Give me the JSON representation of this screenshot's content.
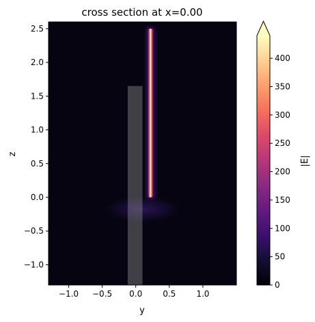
{
  "chart_data": {
    "type": "heatmap",
    "title": "cross section at x=0.00",
    "xlabel": "y",
    "ylabel": "z",
    "xlim": [
      -1.3,
      1.5
    ],
    "ylim": [
      -1.3,
      2.6
    ],
    "xticks": [
      -1.0,
      -0.5,
      0.0,
      0.5,
      1.0
    ],
    "xtick_labels": [
      "−1.0",
      "−0.5",
      "0.0",
      "0.5",
      "1.0"
    ],
    "yticks": [
      -1.0,
      -0.5,
      0.0,
      0.5,
      1.0,
      1.5,
      2.0,
      2.5
    ],
    "ytick_labels": [
      "−1.0",
      "−0.5",
      "0.0",
      "0.5",
      "1.0",
      "1.5",
      "2.0",
      "2.5"
    ],
    "grid": false,
    "colormap": "magma",
    "colorbar": {
      "label": "|E|",
      "range": [
        0,
        440
      ],
      "extend": "max",
      "ticks": [
        0,
        50,
        100,
        150,
        200,
        250,
        300,
        350,
        400
      ],
      "tick_labels": [
        "0",
        "50",
        "100",
        "150",
        "200",
        "250",
        "300",
        "350",
        "400"
      ]
    },
    "field_strip": {
      "y_center": 0.22,
      "z_range": [
        0.0,
        2.5
      ],
      "peak": 440
    },
    "substrate_glow": {
      "z_from": -0.4,
      "z_to": 0.05,
      "peak": 15
    },
    "structures": [
      {
        "name": "waveguide-upper",
        "y_range": [
          -0.12,
          0.1
        ],
        "z_range": [
          -0.4,
          1.65
        ]
      },
      {
        "name": "waveguide-lower",
        "y_range": [
          -0.12,
          0.1
        ],
        "z_range": [
          -1.3,
          -0.4
        ]
      }
    ],
    "colors": {
      "background": "#050410",
      "structure_fill": "#888888",
      "axis": "#000000"
    }
  }
}
